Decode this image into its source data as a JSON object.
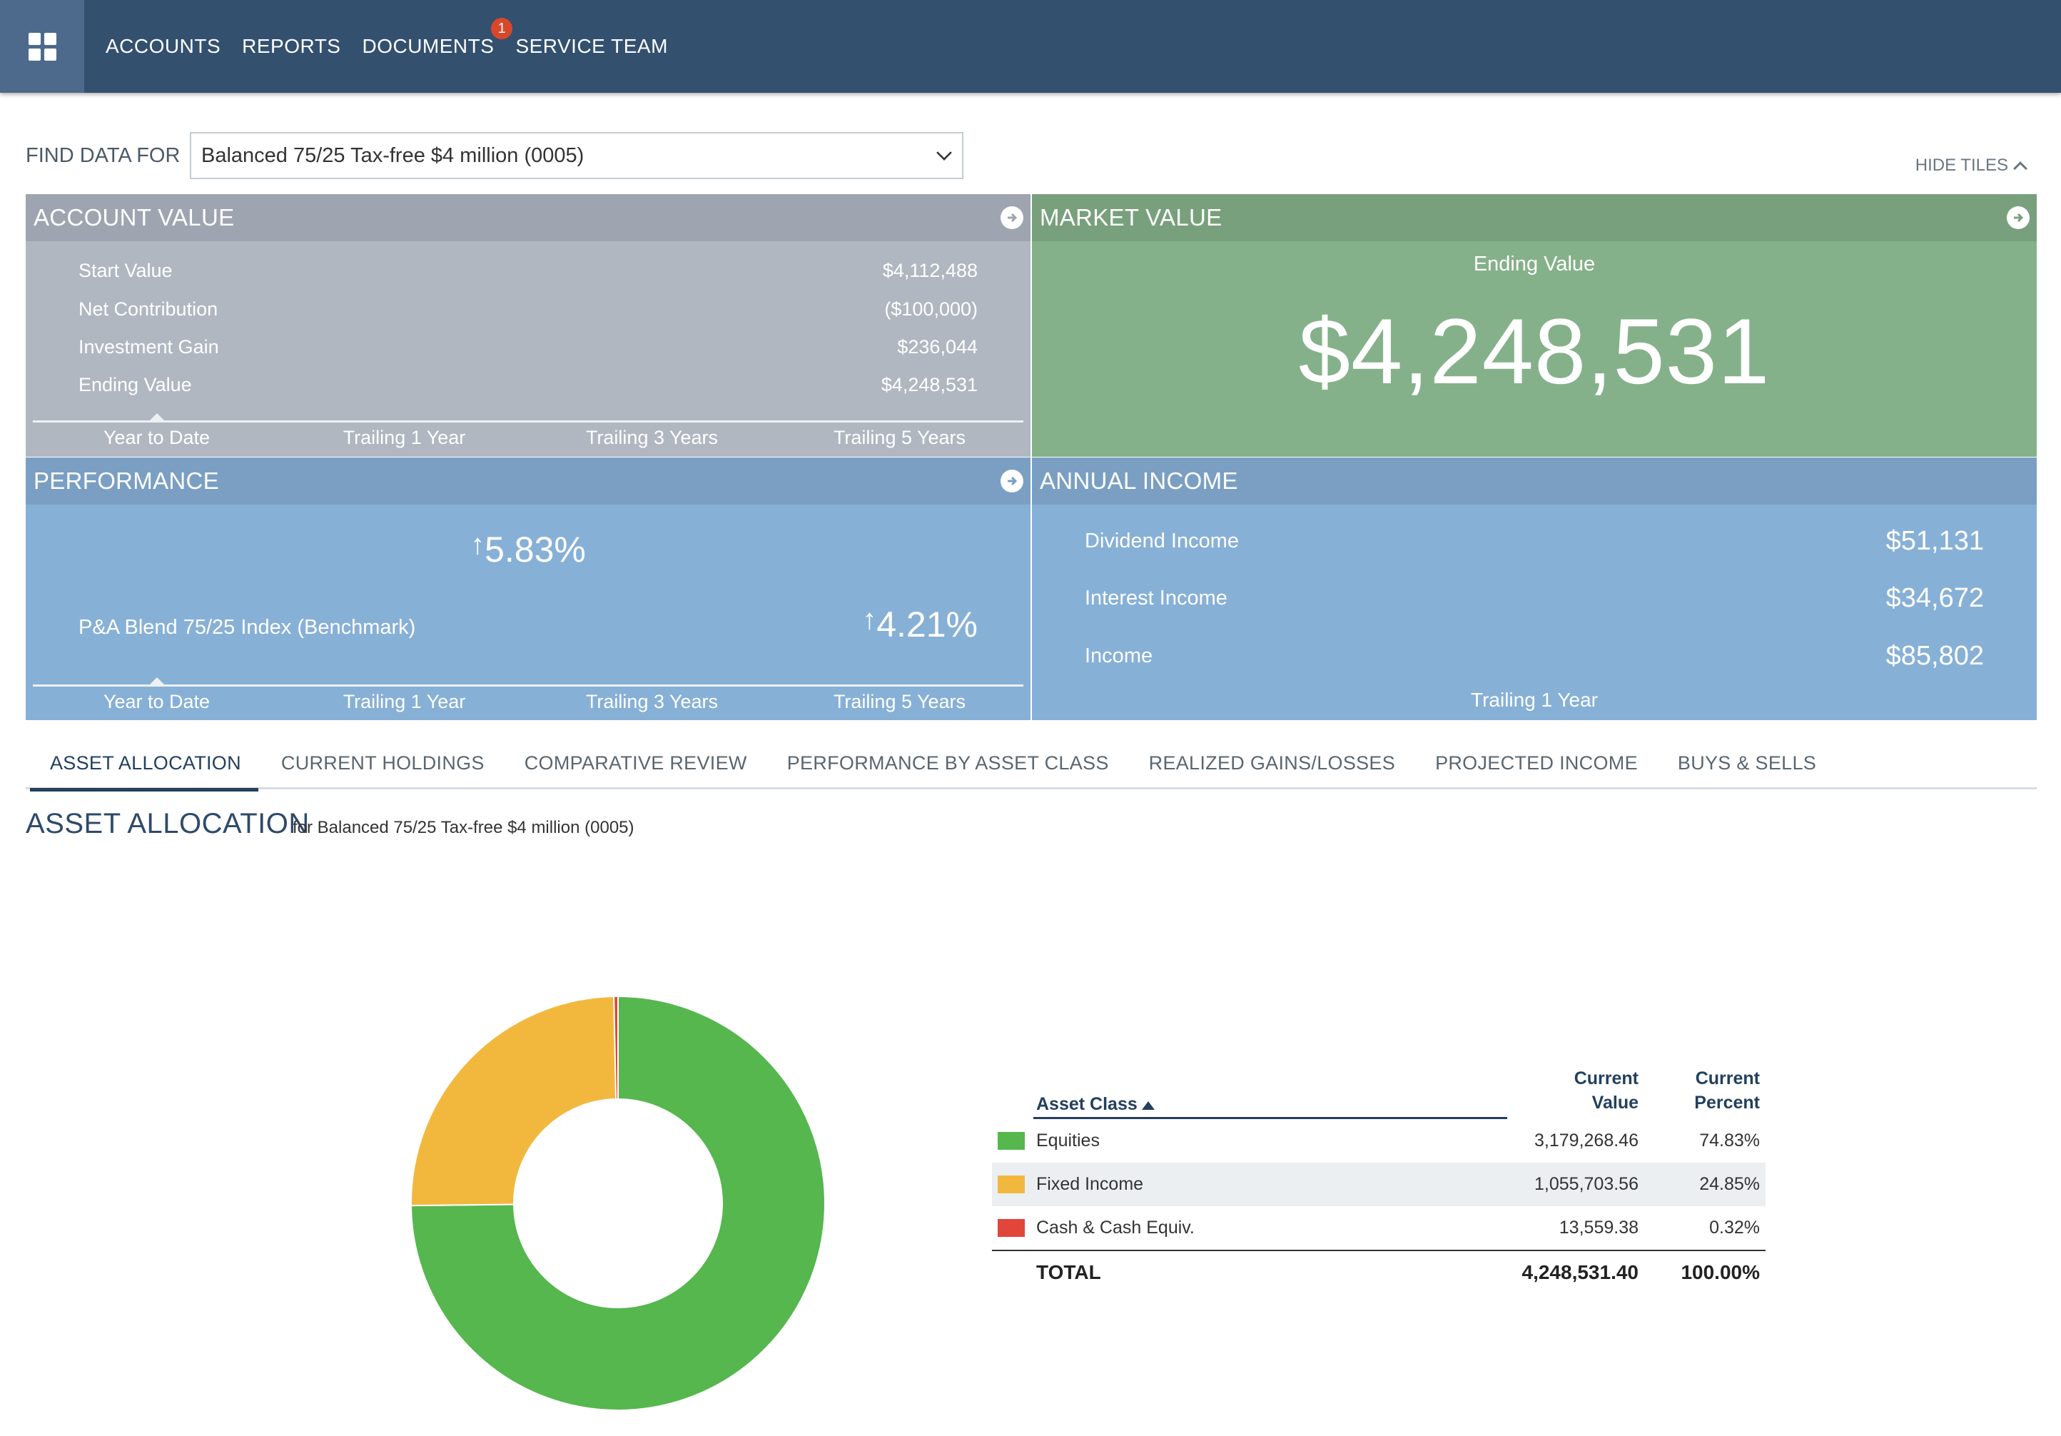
{
  "nav": {
    "items": [
      "ACCOUNTS",
      "REPORTS",
      "DOCUMENTS",
      "SERVICE TEAM"
    ],
    "documents_badge": "1"
  },
  "find": {
    "label": "FIND DATA FOR",
    "selected": "Balanced 75/25 Tax-free $4 million (0005)"
  },
  "hide_tiles": "HIDE TILES",
  "account_value": {
    "title": "ACCOUNT VALUE",
    "rows": [
      {
        "label": "Start Value",
        "value": "$4,112,488"
      },
      {
        "label": "Net Contribution",
        "value": "($100,000)"
      },
      {
        "label": "Investment Gain",
        "value": "$236,044"
      },
      {
        "label": "Ending Value",
        "value": "$4,248,531"
      }
    ],
    "periods": [
      "Year to Date",
      "Trailing 1 Year",
      "Trailing 3 Years",
      "Trailing 5 Years"
    ]
  },
  "market_value": {
    "title": "MARKET VALUE",
    "label": "Ending Value",
    "value": "$4,248,531"
  },
  "performance": {
    "title": "PERFORMANCE",
    "value": "5.83%",
    "benchmark_label": "P&A Blend 75/25 Index (Benchmark)",
    "benchmark_value": "4.21%",
    "periods": [
      "Year to Date",
      "Trailing 1 Year",
      "Trailing 3 Years",
      "Trailing 5 Years"
    ]
  },
  "annual_income": {
    "title": "ANNUAL INCOME",
    "rows": [
      {
        "label": "Dividend Income",
        "value": "$51,131"
      },
      {
        "label": "Interest Income",
        "value": "$34,672"
      },
      {
        "label": "Income",
        "value": "$85,802"
      }
    ],
    "period": "Trailing 1 Year"
  },
  "tabs": [
    "ASSET ALLOCATION",
    "CURRENT HOLDINGS",
    "COMPARATIVE REVIEW",
    "PERFORMANCE BY ASSET CLASS",
    "REALIZED GAINS/LOSSES",
    "PROJECTED INCOME",
    "BUYS & SELLS"
  ],
  "section": {
    "title": "ASSET ALLOCATION",
    "subtitle": "for Balanced 75/25 Tax-free $4 million (0005)"
  },
  "allocation_table": {
    "headers": {
      "asset_class": "Asset Class",
      "value_line1": "Current",
      "value_line2": "Value",
      "percent_line1": "Current",
      "percent_line2": "Percent"
    },
    "rows": [
      {
        "name": "Equities",
        "value": "3,179,268.46",
        "percent": "74.83%",
        "color": "#55b74e"
      },
      {
        "name": "Fixed Income",
        "value": "1,055,703.56",
        "percent": "24.85%",
        "color": "#f2b83e"
      },
      {
        "name": "Cash & Cash Equiv.",
        "value": "13,559.38",
        "percent": "0.32%",
        "color": "#e2453a"
      }
    ],
    "total": {
      "label": "TOTAL",
      "value": "4,248,531.40",
      "percent": "100.00%"
    }
  },
  "chart_data": {
    "type": "pie",
    "donut": true,
    "categories": [
      "Equities",
      "Fixed Income",
      "Cash & Cash Equiv."
    ],
    "values": [
      74.83,
      24.85,
      0.32
    ],
    "colors": [
      "#55b74e",
      "#f2b83e",
      "#e2453a"
    ]
  }
}
